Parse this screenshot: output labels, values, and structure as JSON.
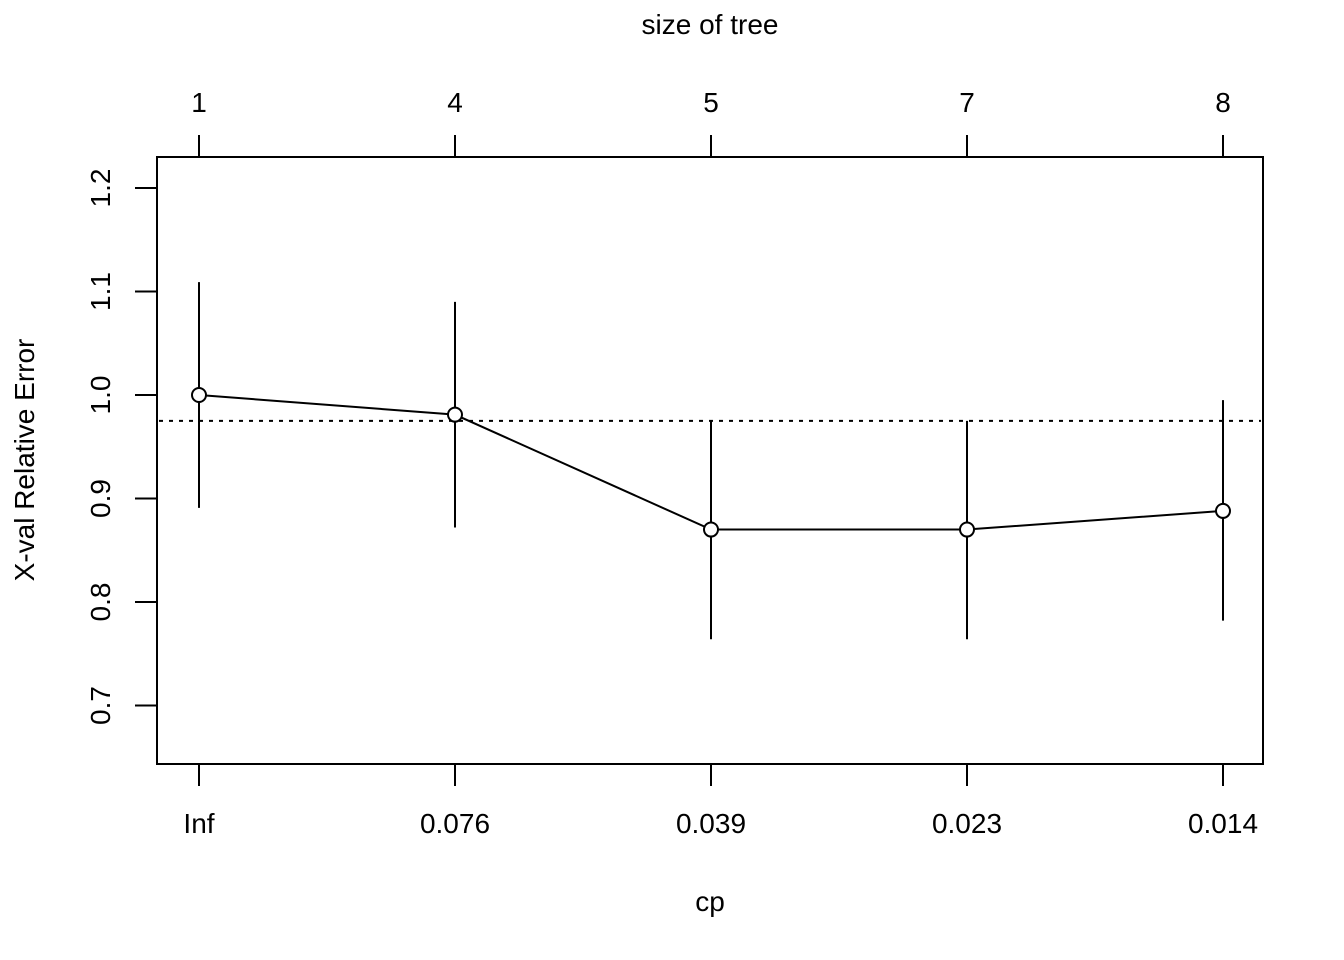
{
  "chart_data": {
    "type": "line",
    "title": "",
    "xlabel": "cp",
    "ylabel": "X-val Relative Error",
    "top_axis_label": "size of tree",
    "categories": [
      "Inf",
      "0.076",
      "0.039",
      "0.023",
      "0.014"
    ],
    "top_categories": [
      "1",
      "4",
      "5",
      "7",
      "8"
    ],
    "y_ticks": [
      "0.7",
      "0.8",
      "0.9",
      "1.0",
      "1.1",
      "1.2"
    ],
    "ylim": [
      0.645,
      1.23
    ],
    "series": [
      {
        "values": [
          1.0,
          0.981,
          0.87,
          0.87,
          0.888
        ],
        "error_low": [
          0.891,
          0.872,
          0.764,
          0.764,
          0.782
        ],
        "error_high": [
          1.109,
          1.09,
          0.975,
          0.975,
          0.995
        ]
      }
    ],
    "reference_line": 0.975,
    "grid": false,
    "legend": "none"
  }
}
